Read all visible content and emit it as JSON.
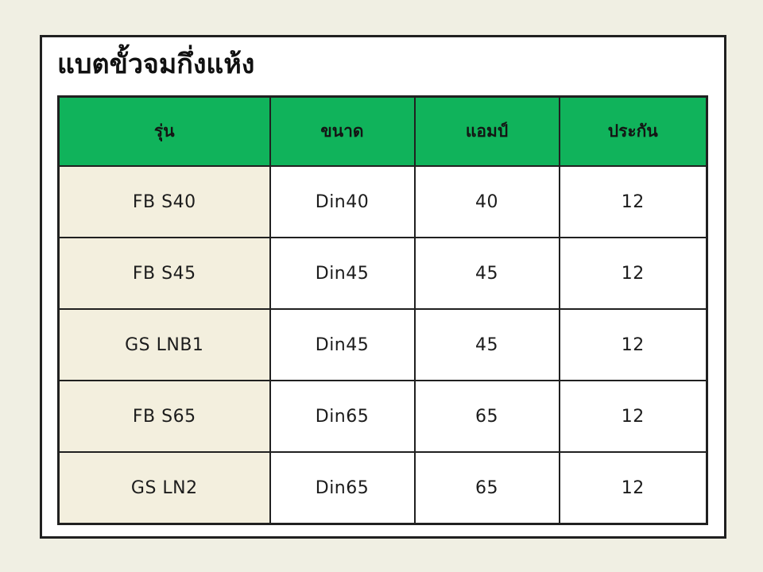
{
  "title": "แบตขั้วจมกึ่งแห้ง",
  "colors": {
    "page_background": "#f0efe3",
    "card_background": "#ffffff",
    "border": "#202020",
    "header_background": "#10b35b",
    "first_column_background": "#f3efde",
    "text": "#1c1c1c"
  },
  "table": {
    "columns": [
      "รุ่น",
      "ขนาด",
      "แอมป์",
      "ประกัน"
    ],
    "rows": [
      [
        "FB S40",
        "Din40",
        "40",
        "12"
      ],
      [
        "FB S45",
        "Din45",
        "45",
        "12"
      ],
      [
        "GS LNB1",
        "Din45",
        "45",
        "12"
      ],
      [
        "FB S65",
        "Din65",
        "65",
        "12"
      ],
      [
        "GS LN2",
        "Din65",
        "65",
        "12"
      ]
    ]
  }
}
